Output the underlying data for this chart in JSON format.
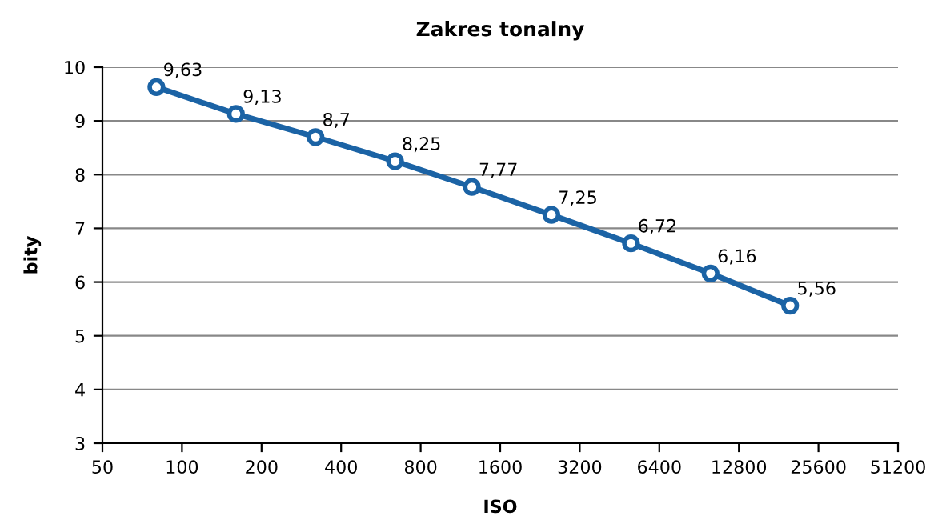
{
  "chart_data": {
    "type": "line",
    "title": "Zakres tonalny",
    "xlabel": "ISO",
    "ylabel": "bity",
    "x": [
      80,
      160,
      320,
      640,
      1250,
      2500,
      5000,
      10000,
      20000
    ],
    "series": [
      {
        "color": "#1b63a5",
        "values": [
          9.63,
          9.13,
          8.7,
          8.25,
          7.77,
          7.25,
          6.72,
          6.16,
          5.56
        ],
        "value_labels": [
          "9,63",
          "9,13",
          "8,7",
          "8,25",
          "7,77",
          "7,25",
          "6,72",
          "6,16",
          "5,56"
        ]
      }
    ],
    "log": "x",
    "xlim": [
      50,
      51200
    ],
    "xticks": [
      50,
      100,
      200,
      400,
      800,
      1600,
      3200,
      6400,
      12800,
      25600,
      51200
    ],
    "ylim": [
      3,
      10
    ],
    "yticks": [
      3,
      4,
      5,
      6,
      7,
      8,
      9,
      10
    ],
    "grid": "y",
    "marker": "circle",
    "line_style": "solid"
  }
}
